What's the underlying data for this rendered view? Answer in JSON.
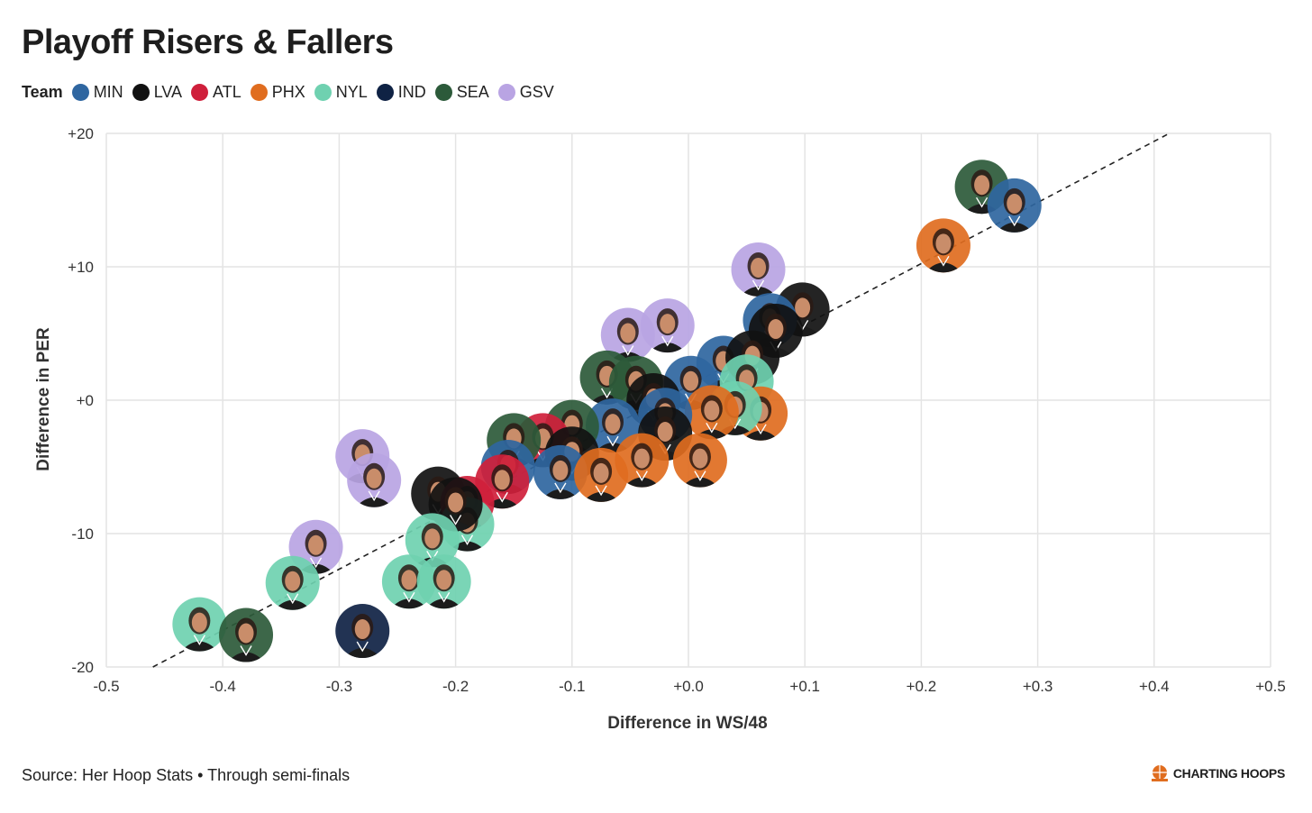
{
  "page": {
    "title": "Playoff Risers & Fallers",
    "source": "Source: Her Hoop Stats • Through semi-finals",
    "brand": "CHARTING HOOPS"
  },
  "legend": {
    "title": "Team",
    "teams": [
      {
        "code": "MIN",
        "color": "#2f66a0"
      },
      {
        "code": "LVA",
        "color": "#111111"
      },
      {
        "code": "ATL",
        "color": "#cf1f3b"
      },
      {
        "code": "PHX",
        "color": "#e06d1f"
      },
      {
        "code": "NYL",
        "color": "#6fd1b0"
      },
      {
        "code": "IND",
        "color": "#0f2244"
      },
      {
        "code": "SEA",
        "color": "#2c5a3a"
      },
      {
        "code": "GSV",
        "color": "#b9a4e3"
      }
    ]
  },
  "chart_data": {
    "type": "scatter",
    "title": "Playoff Risers & Fallers",
    "xlabel": "Difference in WS/48",
    "ylabel": "Difference in PER",
    "xlim": [
      -0.5,
      0.5
    ],
    "ylim": [
      -20,
      20
    ],
    "xticks": [
      "-0.5",
      "-0.4",
      "-0.3",
      "-0.2",
      "-0.1",
      "+0.0",
      "+0.1",
      "+0.2",
      "+0.3",
      "+0.4",
      "+0.5"
    ],
    "yticks": [
      "-20",
      "-10",
      "+0",
      "+10",
      "+20"
    ],
    "grid": true,
    "trendline": {
      "x": [
        -0.46,
        0.413
      ],
      "y": [
        -20,
        20
      ],
      "style": "dashed"
    },
    "points": [
      {
        "x": 0.252,
        "y": 16,
        "team": "SEA"
      },
      {
        "x": 0.28,
        "y": 14.6,
        "team": "MIN"
      },
      {
        "x": 0.219,
        "y": 11.6,
        "team": "PHX"
      },
      {
        "x": 0.06,
        "y": 9.8,
        "team": "GSV"
      },
      {
        "x": 0.098,
        "y": 6.8,
        "team": "LVA"
      },
      {
        "x": 0.07,
        "y": 6,
        "team": "MIN"
      },
      {
        "x": 0.075,
        "y": 5.2,
        "team": "LVA"
      },
      {
        "x": -0.018,
        "y": 5.6,
        "team": "GSV"
      },
      {
        "x": -0.052,
        "y": 4.9,
        "team": "GSV"
      },
      {
        "x": 0.03,
        "y": 2.8,
        "team": "MIN"
      },
      {
        "x": 0.055,
        "y": 3.2,
        "team": "LVA"
      },
      {
        "x": -0.07,
        "y": 1.7,
        "team": "SEA"
      },
      {
        "x": -0.045,
        "y": 1.3,
        "team": "SEA"
      },
      {
        "x": 0.002,
        "y": 1.3,
        "team": "MIN"
      },
      {
        "x": 0.05,
        "y": 1.4,
        "team": "NYL"
      },
      {
        "x": 0.062,
        "y": -1,
        "team": "PHX"
      },
      {
        "x": 0.04,
        "y": -0.6,
        "team": "NYL"
      },
      {
        "x": 0.02,
        "y": -0.9,
        "team": "PHX"
      },
      {
        "x": -0.03,
        "y": 0,
        "team": "LVA"
      },
      {
        "x": -0.02,
        "y": -1.1,
        "team": "MIN"
      },
      {
        "x": -0.065,
        "y": -1.9,
        "team": "MIN"
      },
      {
        "x": -0.1,
        "y": -2,
        "team": "SEA"
      },
      {
        "x": -0.125,
        "y": -3,
        "team": "ATL"
      },
      {
        "x": -0.15,
        "y": -3,
        "team": "SEA"
      },
      {
        "x": -0.02,
        "y": -2.5,
        "team": "LVA"
      },
      {
        "x": -0.04,
        "y": -4.5,
        "team": "PHX"
      },
      {
        "x": 0.01,
        "y": -4.5,
        "team": "PHX"
      },
      {
        "x": -0.1,
        "y": -4,
        "team": "LVA"
      },
      {
        "x": -0.155,
        "y": -5,
        "team": "MIN"
      },
      {
        "x": -0.11,
        "y": -5.4,
        "team": "MIN"
      },
      {
        "x": -0.075,
        "y": -5.6,
        "team": "PHX"
      },
      {
        "x": -0.16,
        "y": -6.1,
        "team": "ATL"
      },
      {
        "x": -0.28,
        "y": -4.2,
        "team": "GSV"
      },
      {
        "x": -0.27,
        "y": -6,
        "team": "GSV"
      },
      {
        "x": -0.215,
        "y": -7,
        "team": "LVA"
      },
      {
        "x": -0.19,
        "y": -7.7,
        "team": "ATL"
      },
      {
        "x": -0.19,
        "y": -9.3,
        "team": "NYL"
      },
      {
        "x": -0.2,
        "y": -7.8,
        "team": "LVA"
      },
      {
        "x": -0.22,
        "y": -10.5,
        "team": "NYL"
      },
      {
        "x": -0.32,
        "y": -11,
        "team": "GSV"
      },
      {
        "x": -0.34,
        "y": -13.7,
        "team": "NYL"
      },
      {
        "x": -0.24,
        "y": -13.6,
        "team": "NYL"
      },
      {
        "x": -0.21,
        "y": -13.6,
        "team": "NYL"
      },
      {
        "x": -0.42,
        "y": -16.8,
        "team": "NYL"
      },
      {
        "x": -0.38,
        "y": -17.6,
        "team": "SEA"
      },
      {
        "x": -0.28,
        "y": -17.3,
        "team": "IND"
      }
    ]
  }
}
